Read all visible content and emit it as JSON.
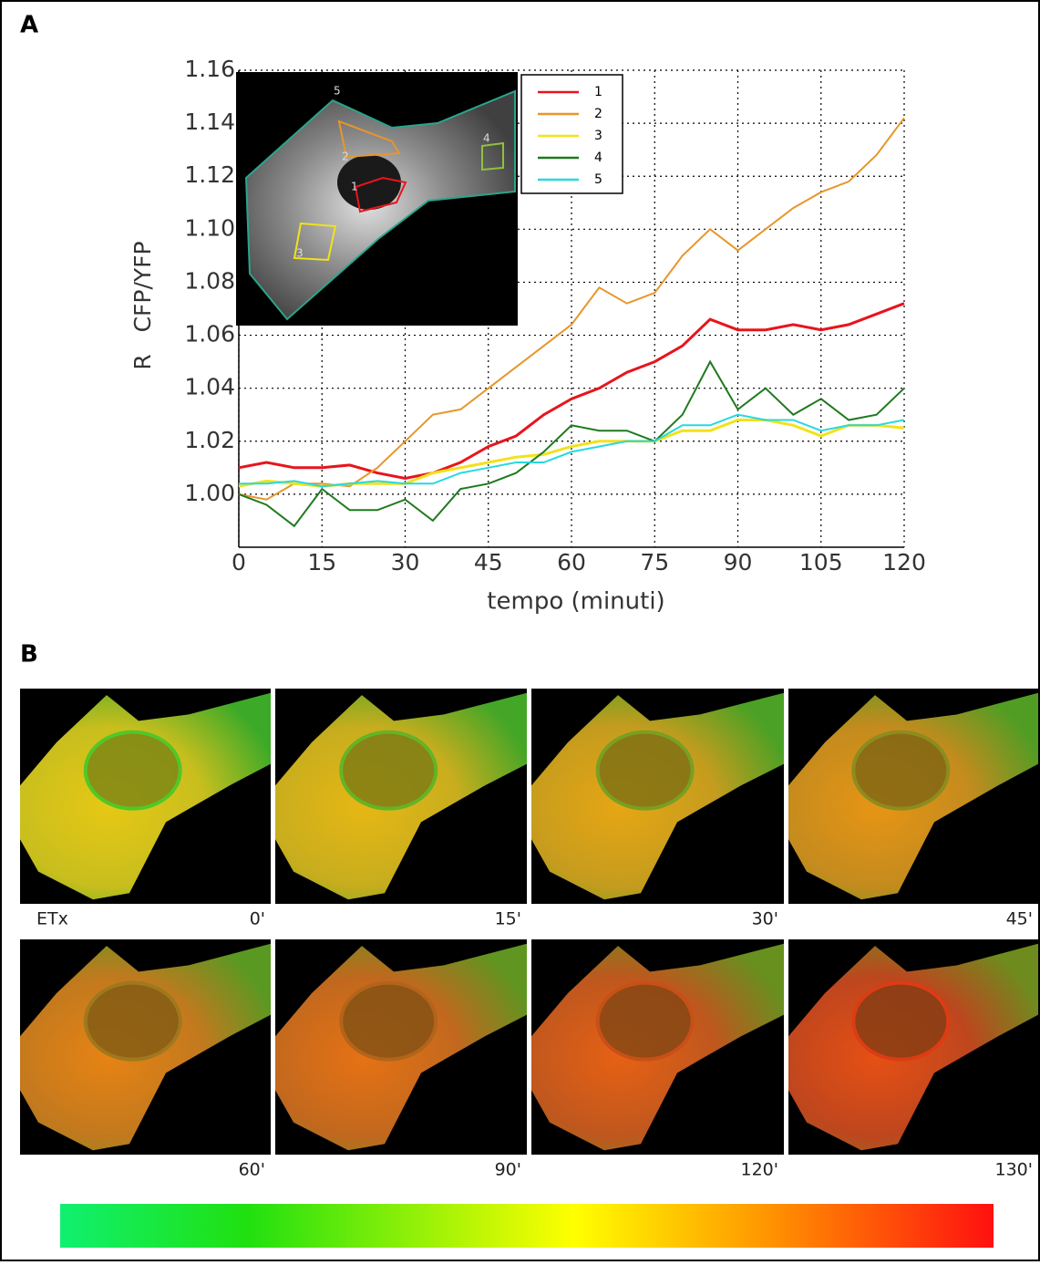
{
  "panel_a": "A",
  "panel_b": "B",
  "chart_data": {
    "type": "line",
    "ylabel": "R   CFP/YFP",
    "xlabel": "tempo (minuti)",
    "x": [
      0,
      5,
      10,
      15,
      20,
      25,
      30,
      35,
      40,
      45,
      50,
      55,
      60,
      65,
      70,
      75,
      80,
      85,
      90,
      95,
      100,
      105,
      110,
      115,
      120
    ],
    "xlim": [
      0,
      120
    ],
    "xticks": [
      0,
      15,
      30,
      45,
      60,
      75,
      90,
      105,
      120
    ],
    "ylim": [
      0.98,
      1.16
    ],
    "yticks": [
      {
        "value": 1.0,
        "label": "1.00"
      },
      {
        "value": 1.02,
        "label": "1.02"
      },
      {
        "value": 1.04,
        "label": "1.04"
      },
      {
        "value": 1.06,
        "label": "1.06"
      },
      {
        "value": 1.08,
        "label": "1.08"
      },
      {
        "value": 1.1,
        "label": "1.10"
      },
      {
        "value": 1.12,
        "label": "1.12"
      },
      {
        "value": 1.14,
        "label": "1.14"
      },
      {
        "value": 1.16,
        "label": "1.16"
      }
    ],
    "grid": true,
    "legend": "top-right",
    "series": [
      {
        "name": "1",
        "color": "#e8141c",
        "values": [
          1.01,
          1.012,
          1.01,
          1.01,
          1.011,
          1.008,
          1.006,
          1.008,
          1.012,
          1.018,
          1.022,
          1.03,
          1.036,
          1.04,
          1.046,
          1.05,
          1.056,
          1.066,
          1.062,
          1.062,
          1.064,
          1.062,
          1.064,
          1.068,
          1.072
        ]
      },
      {
        "name": "2",
        "color": "#e8962a",
        "values": [
          1.0,
          0.998,
          1.004,
          1.004,
          1.003,
          1.01,
          1.02,
          1.03,
          1.032,
          1.04,
          1.048,
          1.056,
          1.064,
          1.078,
          1.072,
          1.076,
          1.09,
          1.1,
          1.092,
          1.1,
          1.108,
          1.114,
          1.118,
          1.128,
          1.142
        ]
      },
      {
        "name": "3",
        "color": "#f2e21a",
        "values": [
          1.003,
          1.005,
          1.004,
          1.003,
          1.004,
          1.004,
          1.004,
          1.008,
          1.01,
          1.012,
          1.014,
          1.015,
          1.018,
          1.02,
          1.02,
          1.02,
          1.024,
          1.024,
          1.028,
          1.028,
          1.026,
          1.022,
          1.026,
          1.026,
          1.025
        ]
      },
      {
        "name": "4",
        "color": "#1f7a1f",
        "values": [
          1.0,
          0.996,
          0.988,
          1.002,
          0.994,
          0.994,
          0.998,
          0.99,
          1.002,
          1.004,
          1.008,
          1.016,
          1.026,
          1.024,
          1.024,
          1.02,
          1.03,
          1.05,
          1.032,
          1.04,
          1.03,
          1.036,
          1.028,
          1.03,
          1.04
        ]
      },
      {
        "name": "5",
        "color": "#28d8e0",
        "values": [
          1.004,
          1.004,
          1.005,
          1.003,
          1.004,
          1.005,
          1.004,
          1.004,
          1.008,
          1.01,
          1.012,
          1.012,
          1.016,
          1.018,
          1.02,
          1.02,
          1.026,
          1.026,
          1.03,
          1.028,
          1.028,
          1.024,
          1.026,
          1.026,
          1.028
        ]
      }
    ]
  },
  "treatment": "ETx",
  "frames": [
    "0'",
    "15'",
    "30'",
    "45'",
    "60'",
    "90'",
    "120'",
    "130'"
  ]
}
